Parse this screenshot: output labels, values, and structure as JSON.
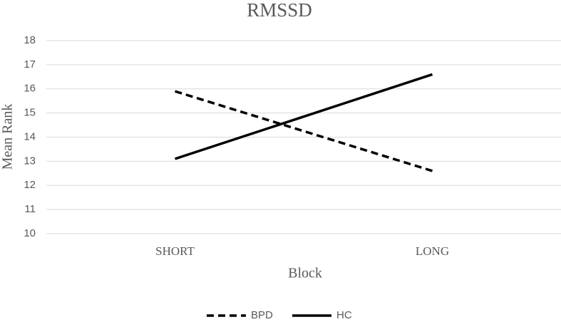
{
  "chart_data": {
    "type": "line",
    "title": "RMSSD",
    "x_label": "Block",
    "y_label": "Mean Rank",
    "categories": [
      "SHORT",
      "LONG"
    ],
    "series": [
      {
        "name": "BPD",
        "color": "#000000",
        "dashed": true,
        "values": [
          15.9,
          12.6
        ]
      },
      {
        "name": "HC",
        "color": "#000000",
        "dashed": false,
        "values": [
          13.1,
          16.6
        ]
      }
    ],
    "ylim": [
      10,
      18
    ],
    "yticks": [
      10,
      11,
      12,
      13,
      14,
      15,
      16,
      17,
      18
    ],
    "grid": true,
    "legend": "bottom"
  }
}
